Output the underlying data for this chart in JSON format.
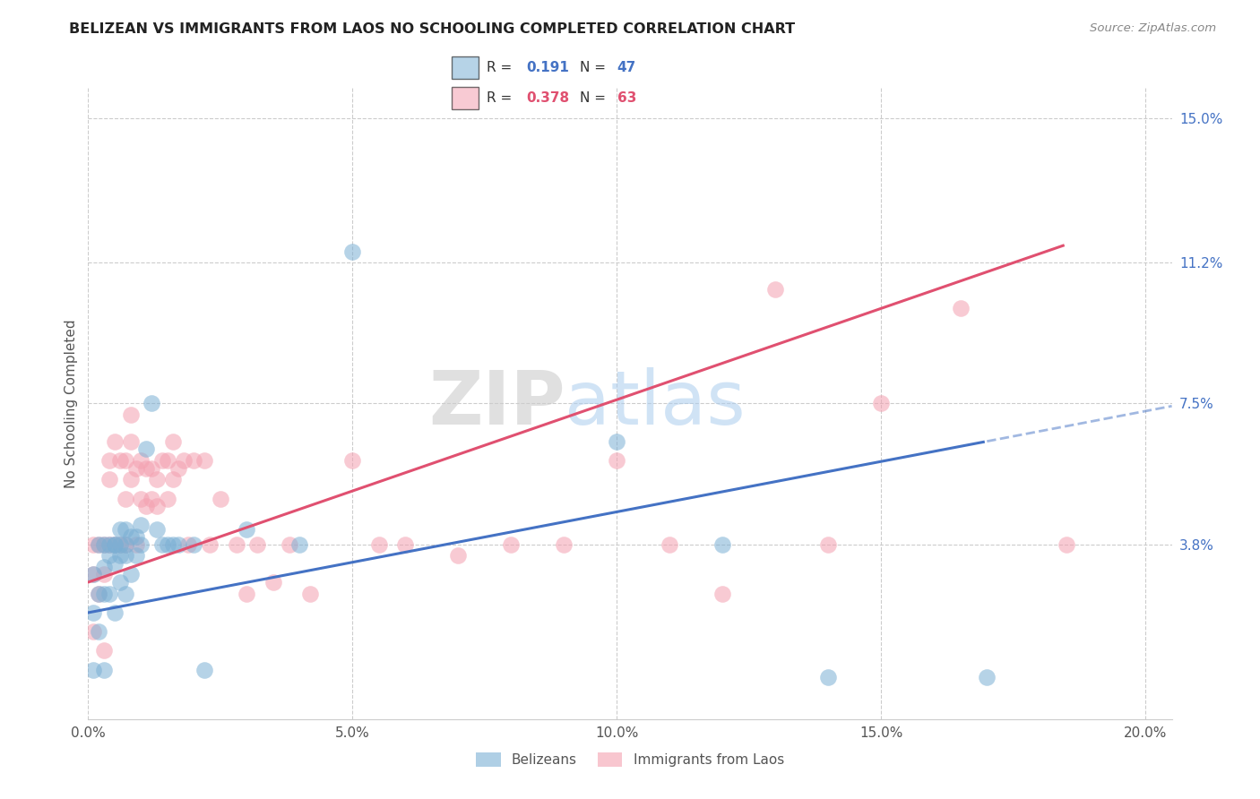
{
  "title": "BELIZEAN VS IMMIGRANTS FROM LAOS NO SCHOOLING COMPLETED CORRELATION CHART",
  "source": "Source: ZipAtlas.com",
  "ylabel": "No Schooling Completed",
  "xlim": [
    0.0,
    0.205
  ],
  "ylim": [
    -0.008,
    0.158
  ],
  "xtick_vals": [
    0.0,
    0.05,
    0.1,
    0.15,
    0.2
  ],
  "xtick_labels": [
    "0.0%",
    "5.0%",
    "10.0%",
    "15.0%",
    "20.0%"
  ],
  "ytick_vals_right": [
    0.038,
    0.075,
    0.112,
    0.15
  ],
  "ytick_labels_right": [
    "3.8%",
    "7.5%",
    "11.2%",
    "15.0%"
  ],
  "watermark_zip": "ZIP",
  "watermark_atlas": "atlas",
  "blue_scatter_color": "#7BAFD4",
  "pink_scatter_color": "#F4A0B0",
  "blue_line_color": "#4472C4",
  "pink_line_color": "#E05070",
  "blue_intercept": 0.02,
  "blue_slope": 0.265,
  "pink_intercept": 0.028,
  "pink_slope": 0.48,
  "belizean_x": [
    0.001,
    0.001,
    0.001,
    0.002,
    0.002,
    0.002,
    0.003,
    0.003,
    0.003,
    0.003,
    0.004,
    0.004,
    0.004,
    0.005,
    0.005,
    0.005,
    0.005,
    0.006,
    0.006,
    0.006,
    0.006,
    0.007,
    0.007,
    0.007,
    0.007,
    0.008,
    0.008,
    0.009,
    0.009,
    0.01,
    0.01,
    0.011,
    0.012,
    0.013,
    0.014,
    0.015,
    0.016,
    0.017,
    0.02,
    0.022,
    0.03,
    0.04,
    0.05,
    0.1,
    0.12,
    0.14,
    0.17
  ],
  "belizean_y": [
    0.03,
    0.02,
    0.005,
    0.038,
    0.025,
    0.015,
    0.038,
    0.032,
    0.025,
    0.005,
    0.038,
    0.035,
    0.025,
    0.038,
    0.038,
    0.033,
    0.02,
    0.042,
    0.038,
    0.035,
    0.028,
    0.042,
    0.038,
    0.035,
    0.025,
    0.04,
    0.03,
    0.04,
    0.035,
    0.043,
    0.038,
    0.063,
    0.075,
    0.042,
    0.038,
    0.038,
    0.038,
    0.038,
    0.038,
    0.005,
    0.042,
    0.038,
    0.115,
    0.065,
    0.038,
    0.003,
    0.003
  ],
  "laos_x": [
    0.001,
    0.001,
    0.001,
    0.002,
    0.002,
    0.003,
    0.003,
    0.003,
    0.004,
    0.004,
    0.004,
    0.005,
    0.005,
    0.006,
    0.006,
    0.007,
    0.007,
    0.007,
    0.008,
    0.008,
    0.008,
    0.009,
    0.009,
    0.01,
    0.01,
    0.011,
    0.011,
    0.012,
    0.012,
    0.013,
    0.013,
    0.014,
    0.015,
    0.015,
    0.016,
    0.016,
    0.017,
    0.018,
    0.019,
    0.02,
    0.022,
    0.023,
    0.025,
    0.028,
    0.03,
    0.032,
    0.035,
    0.038,
    0.042,
    0.05,
    0.055,
    0.06,
    0.07,
    0.08,
    0.09,
    0.1,
    0.11,
    0.12,
    0.13,
    0.14,
    0.15,
    0.165,
    0.185
  ],
  "laos_y": [
    0.038,
    0.03,
    0.015,
    0.038,
    0.025,
    0.038,
    0.03,
    0.01,
    0.06,
    0.055,
    0.038,
    0.065,
    0.038,
    0.06,
    0.038,
    0.06,
    0.05,
    0.038,
    0.072,
    0.065,
    0.055,
    0.058,
    0.038,
    0.06,
    0.05,
    0.058,
    0.048,
    0.058,
    0.05,
    0.055,
    0.048,
    0.06,
    0.06,
    0.05,
    0.065,
    0.055,
    0.058,
    0.06,
    0.038,
    0.06,
    0.06,
    0.038,
    0.05,
    0.038,
    0.025,
    0.038,
    0.028,
    0.038,
    0.025,
    0.06,
    0.038,
    0.038,
    0.035,
    0.038,
    0.038,
    0.06,
    0.038,
    0.025,
    0.105,
    0.038,
    0.075,
    0.1,
    0.038
  ]
}
